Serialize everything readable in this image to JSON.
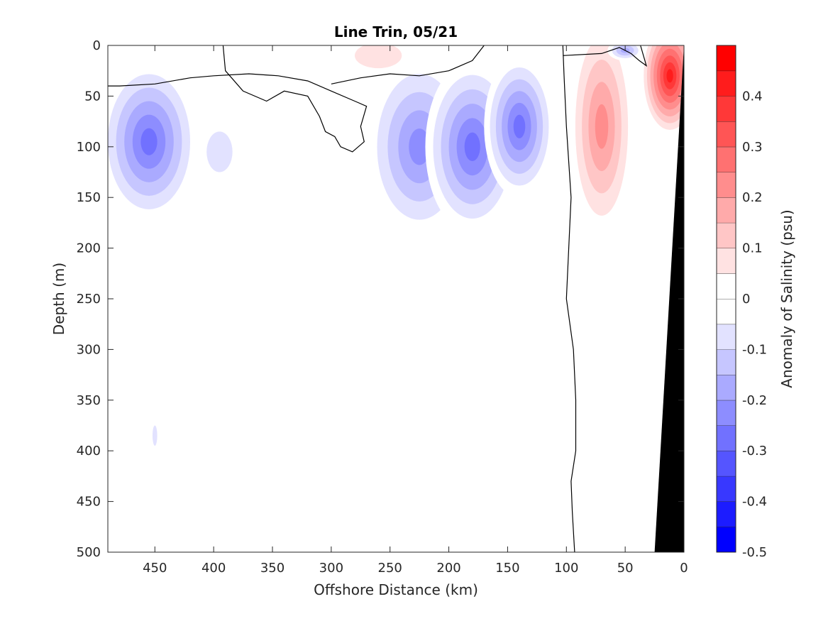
{
  "chart_data": {
    "type": "heatmap",
    "title": "Line Trin, 05/21",
    "xlabel": "Offshore Distance (km)",
    "ylabel": "Depth (m)",
    "colorbar_label": "Anomaly of Salinity (psu)",
    "xlim": [
      490,
      0
    ],
    "ylim": [
      0,
      500
    ],
    "x_ticks": [
      450,
      400,
      350,
      300,
      250,
      200,
      150,
      100,
      50,
      0
    ],
    "y_ticks": [
      0,
      50,
      100,
      150,
      200,
      250,
      300,
      350,
      400,
      450,
      500
    ],
    "clim": [
      -0.5,
      0.5
    ],
    "colorbar_ticks": [
      -0.5,
      -0.4,
      -0.3,
      -0.2,
      -0.1,
      0,
      0.1,
      0.2,
      0.3,
      0.4
    ],
    "color_levels": [
      {
        "from": -0.5,
        "to": -0.45,
        "color": "#0000ff"
      },
      {
        "from": -0.45,
        "to": -0.4,
        "color": "#1c1cff"
      },
      {
        "from": -0.4,
        "to": -0.35,
        "color": "#3838ff"
      },
      {
        "from": -0.35,
        "to": -0.3,
        "color": "#5555ff"
      },
      {
        "from": -0.3,
        "to": -0.25,
        "color": "#7171ff"
      },
      {
        "from": -0.25,
        "to": -0.2,
        "color": "#8d8dff"
      },
      {
        "from": -0.2,
        "to": -0.15,
        "color": "#aaaaff"
      },
      {
        "from": -0.15,
        "to": -0.1,
        "color": "#c6c6ff"
      },
      {
        "from": -0.1,
        "to": -0.05,
        "color": "#e2e2ff"
      },
      {
        "from": -0.05,
        "to": 0,
        "color": "#ffffff"
      },
      {
        "from": 0,
        "to": 0.05,
        "color": "#ffffff"
      },
      {
        "from": 0.05,
        "to": 0.1,
        "color": "#ffe2e2"
      },
      {
        "from": 0.1,
        "to": 0.15,
        "color": "#ffc6c6"
      },
      {
        "from": 0.15,
        "to": 0.2,
        "color": "#ffaaaa"
      },
      {
        "from": 0.2,
        "to": 0.25,
        "color": "#ff8d8d"
      },
      {
        "from": 0.25,
        "to": 0.3,
        "color": "#ff7171"
      },
      {
        "from": 0.3,
        "to": 0.35,
        "color": "#ff5555"
      },
      {
        "from": 0.35,
        "to": 0.4,
        "color": "#ff3838"
      },
      {
        "from": 0.4,
        "to": 0.45,
        "color": "#ff1c1c"
      },
      {
        "from": 0.45,
        "to": 0.5,
        "color": "#ff0000"
      }
    ],
    "anomaly_features": [
      {
        "name": "western-negative-anomaly",
        "x_center": 455,
        "depth_center": 95,
        "x_radius": 42,
        "depth_radius": 80,
        "peak": -0.3
      },
      {
        "name": "west-mid-negative-anomaly",
        "x_center": 395,
        "depth_center": 105,
        "x_radius": 22,
        "depth_radius": 40,
        "peak": -0.1
      },
      {
        "name": "central-negative-anomaly-a",
        "x_center": 225,
        "depth_center": 100,
        "x_radius": 45,
        "depth_radius": 90,
        "peak": -0.25
      },
      {
        "name": "central-negative-anomaly-b",
        "x_center": 180,
        "depth_center": 100,
        "x_radius": 40,
        "depth_radius": 85,
        "peak": -0.3
      },
      {
        "name": "east-central-negative-anomaly",
        "x_center": 140,
        "depth_center": 80,
        "x_radius": 30,
        "depth_radius": 70,
        "peak": -0.3
      },
      {
        "name": "surface-positive-anomaly",
        "x_center": 260,
        "depth_center": 10,
        "x_radius": 40,
        "depth_radius": 25,
        "peak": 0.1
      },
      {
        "name": "nearshore-positive-anomaly",
        "x_center": 70,
        "depth_center": 80,
        "x_radius": 28,
        "depth_radius": 110,
        "peak": 0.25
      },
      {
        "name": "coastal-positive-anomaly",
        "x_center": 12,
        "depth_center": 30,
        "x_radius": 25,
        "depth_radius": 60,
        "peak": 0.45
      },
      {
        "name": "surface-negative-anomaly-east",
        "x_center": 50,
        "depth_center": 5,
        "x_radius": 15,
        "depth_radius": 10,
        "peak": -0.2
      },
      {
        "name": "deep-isolated-negative-anomaly",
        "x_center": 450,
        "depth_center": 385,
        "x_radius": 4,
        "depth_radius": 20,
        "peak": -0.1
      }
    ],
    "zero_contours": [
      {
        "name": "zero-contour-west",
        "points": [
          [
            392,
            0
          ],
          [
            390,
            25
          ],
          [
            375,
            45
          ],
          [
            355,
            55
          ],
          [
            340,
            45
          ],
          [
            320,
            50
          ],
          [
            310,
            70
          ],
          [
            305,
            85
          ],
          [
            297,
            90
          ],
          [
            292,
            100
          ],
          [
            282,
            105
          ],
          [
            272,
            95
          ],
          [
            275,
            80
          ],
          [
            270,
            60
          ],
          [
            280,
            55
          ],
          [
            300,
            45
          ],
          [
            320,
            35
          ],
          [
            345,
            30
          ],
          [
            370,
            28
          ],
          [
            400,
            30
          ],
          [
            420,
            32
          ],
          [
            450,
            38
          ],
          [
            480,
            40
          ],
          [
            490,
            40
          ]
        ]
      },
      {
        "name": "zero-contour-central",
        "points": [
          [
            170,
            0
          ],
          [
            180,
            15
          ],
          [
            200,
            25
          ],
          [
            225,
            30
          ],
          [
            250,
            28
          ],
          [
            275,
            32
          ],
          [
            300,
            38
          ]
        ]
      },
      {
        "name": "zero-contour-nearshore",
        "points": [
          [
            103,
            0
          ],
          [
            102,
            30
          ],
          [
            100,
            80
          ],
          [
            96,
            150
          ],
          [
            98,
            200
          ],
          [
            100,
            250
          ],
          [
            94,
            300
          ],
          [
            92,
            350
          ],
          [
            92,
            400
          ],
          [
            96,
            430
          ],
          [
            95,
            460
          ],
          [
            93,
            500
          ]
        ]
      },
      {
        "name": "zero-contour-surface-east",
        "points": [
          [
            103,
            10
          ],
          [
            70,
            8
          ],
          [
            55,
            2
          ],
          [
            45,
            8
          ],
          [
            38,
            15
          ],
          [
            32,
            20
          ],
          [
            37,
            0
          ]
        ]
      }
    ],
    "bathymetry": {
      "depth_points": [
        [
          0,
          0
        ],
        [
          25,
          500
        ],
        [
          0,
          500
        ]
      ],
      "color": "#000000"
    }
  }
}
